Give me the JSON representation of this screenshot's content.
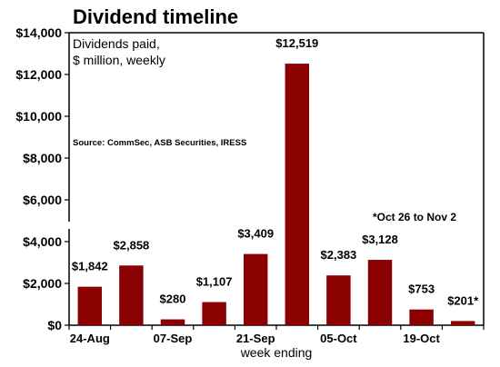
{
  "chart_data": {
    "type": "bar",
    "title": "Dividend timeline",
    "subtitle_lines": [
      "Dividends paid,",
      "$ million, weekly"
    ],
    "source": "Source: CommSec, ASB Securities, IRESS",
    "note": "*Oct 26 to Nov 2",
    "xlabel": "week ending",
    "ylabel": "",
    "ylim": [
      0,
      14000
    ],
    "y_ticks": [
      "$0",
      "$2,000",
      "$4,000",
      "$6,000",
      "$8,000",
      "$10,000",
      "$12,000",
      "$14,000"
    ],
    "x_tick_labels": [
      "24-Aug",
      "07-Sep",
      "21-Sep",
      "05-Oct",
      "19-Oct"
    ],
    "x_tick_category_index": [
      0,
      2,
      4,
      6,
      8
    ],
    "values": [
      1842,
      2858,
      280,
      1107,
      3409,
      12519,
      2383,
      3128,
      753,
      201
    ],
    "data_labels": [
      "$1,842",
      "$2,858",
      "$280",
      "$1,107",
      "$3,409",
      "$12,519",
      "$2,383",
      "$3,128",
      "$753",
      "$201*"
    ],
    "bar_color": "#8b0000",
    "grid": false,
    "legend": "none"
  }
}
